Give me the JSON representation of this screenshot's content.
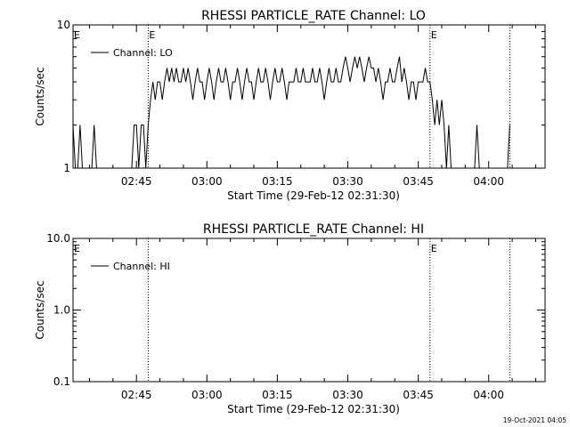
{
  "chart_data": [
    {
      "type": "line",
      "title": "RHESSI PARTICLE_RATE Channel: LO",
      "xlabel": "Start Time (29-Feb-12 02:31:30)",
      "ylabel": "Counts/sec",
      "y_scale": "log",
      "ylim": [
        1,
        10
      ],
      "y_ticks": [
        "1",
        "10"
      ],
      "xlim": [
        "02:31:30",
        "04:12:00"
      ],
      "x_ticks": [
        "02:45",
        "03:00",
        "03:15",
        "03:30",
        "03:45",
        "04:00"
      ],
      "legend": "top-left",
      "grid": false,
      "vlines": [
        {
          "x": "02:47:30",
          "label": "E"
        },
        {
          "x": "03:47:30",
          "label": "E"
        },
        {
          "x": "04:04:30",
          "label": ""
        }
      ],
      "edge_label": "E",
      "series": [
        {
          "name": "Channel: LO",
          "points": [
            [
              "02:31:30",
              2
            ],
            [
              "02:32:00",
              1
            ],
            [
              "02:32:30",
              1
            ],
            [
              "02:33:00",
              2
            ],
            [
              "02:33:30",
              1
            ],
            [
              "02:34:00",
              1
            ],
            [
              "02:34:30",
              1
            ],
            [
              "02:35:00",
              1
            ],
            [
              "02:35:30",
              1
            ],
            [
              "02:36:00",
              2
            ],
            [
              "02:36:30",
              1
            ],
            [
              "02:37:00",
              1
            ],
            [
              "02:38:00",
              1
            ],
            [
              "02:39:00",
              1
            ],
            [
              "02:40:00",
              1
            ],
            [
              "02:41:00",
              1
            ],
            [
              "02:42:00",
              1
            ],
            [
              "02:43:00",
              1
            ],
            [
              "02:44:00",
              1
            ],
            [
              "02:44:30",
              2
            ],
            [
              "02:45:00",
              2
            ],
            [
              "02:45:30",
              1
            ],
            [
              "02:46:00",
              2
            ],
            [
              "02:46:30",
              2
            ],
            [
              "02:47:00",
              1
            ],
            [
              "02:47:30",
              2
            ],
            [
              "02:48:00",
              3
            ],
            [
              "02:48:30",
              4
            ],
            [
              "02:49:00",
              3
            ],
            [
              "02:49:30",
              4
            ],
            [
              "02:50:00",
              4
            ],
            [
              "02:50:30",
              3
            ],
            [
              "02:51:00",
              4
            ],
            [
              "02:51:30",
              5
            ],
            [
              "02:52:00",
              4
            ],
            [
              "02:52:30",
              5
            ],
            [
              "02:53:00",
              4
            ],
            [
              "02:53:30",
              5
            ],
            [
              "02:54:00",
              4
            ],
            [
              "02:54:30",
              4
            ],
            [
              "02:55:00",
              5
            ],
            [
              "02:55:30",
              4
            ],
            [
              "02:56:00",
              5
            ],
            [
              "02:56:30",
              4
            ],
            [
              "02:57:00",
              3
            ],
            [
              "02:57:30",
              4
            ],
            [
              "02:58:00",
              5
            ],
            [
              "02:58:30",
              4
            ],
            [
              "02:59:00",
              4
            ],
            [
              "02:59:30",
              3
            ],
            [
              "03:00:00",
              4
            ],
            [
              "03:00:30",
              5
            ],
            [
              "03:01:00",
              4
            ],
            [
              "03:01:30",
              3
            ],
            [
              "03:02:00",
              4
            ],
            [
              "03:02:30",
              5
            ],
            [
              "03:03:00",
              4
            ],
            [
              "03:03:30",
              4
            ],
            [
              "03:04:00",
              5
            ],
            [
              "03:04:30",
              4
            ],
            [
              "03:05:00",
              3
            ],
            [
              "03:05:30",
              4
            ],
            [
              "03:06:00",
              4
            ],
            [
              "03:06:30",
              5
            ],
            [
              "03:07:00",
              4
            ],
            [
              "03:07:30",
              3
            ],
            [
              "03:08:00",
              4
            ],
            [
              "03:08:30",
              5
            ],
            [
              "03:09:00",
              4
            ],
            [
              "03:09:30",
              4
            ],
            [
              "03:10:00",
              3
            ],
            [
              "03:10:30",
              4
            ],
            [
              "03:11:00",
              5
            ],
            [
              "03:11:30",
              4
            ],
            [
              "03:12:00",
              4
            ],
            [
              "03:12:30",
              5
            ],
            [
              "03:13:00",
              4
            ],
            [
              "03:13:30",
              3
            ],
            [
              "03:14:00",
              4
            ],
            [
              "03:14:30",
              5
            ],
            [
              "03:15:00",
              4
            ],
            [
              "03:15:30",
              4
            ],
            [
              "03:16:00",
              5
            ],
            [
              "03:16:30",
              4
            ],
            [
              "03:17:00",
              3
            ],
            [
              "03:17:30",
              4
            ],
            [
              "03:18:00",
              4
            ],
            [
              "03:18:30",
              4
            ],
            [
              "03:19:00",
              5
            ],
            [
              "03:19:30",
              4
            ],
            [
              "03:20:00",
              4
            ],
            [
              "03:20:30",
              5
            ],
            [
              "03:21:00",
              4
            ],
            [
              "03:21:30",
              4
            ],
            [
              "03:22:00",
              4
            ],
            [
              "03:22:30",
              5
            ],
            [
              "03:23:00",
              4
            ],
            [
              "03:23:30",
              4
            ],
            [
              "03:24:00",
              5
            ],
            [
              "03:24:30",
              4
            ],
            [
              "03:25:00",
              3
            ],
            [
              "03:25:30",
              4
            ],
            [
              "03:26:00",
              5
            ],
            [
              "03:26:30",
              4
            ],
            [
              "03:27:00",
              4
            ],
            [
              "03:27:30",
              5
            ],
            [
              "03:28:00",
              4
            ],
            [
              "03:28:30",
              4
            ],
            [
              "03:29:00",
              5
            ],
            [
              "03:29:30",
              6
            ],
            [
              "03:30:00",
              5
            ],
            [
              "03:30:30",
              4
            ],
            [
              "03:31:00",
              5
            ],
            [
              "03:31:30",
              6
            ],
            [
              "03:32:00",
              5
            ],
            [
              "03:32:30",
              6
            ],
            [
              "03:33:00",
              5
            ],
            [
              "03:33:30",
              4
            ],
            [
              "03:34:00",
              5
            ],
            [
              "03:34:30",
              6
            ],
            [
              "03:35:00",
              5
            ],
            [
              "03:35:30",
              5
            ],
            [
              "03:36:00",
              4
            ],
            [
              "03:36:30",
              5
            ],
            [
              "03:37:00",
              4
            ],
            [
              "03:37:30",
              3
            ],
            [
              "03:38:00",
              4
            ],
            [
              "03:38:30",
              4
            ],
            [
              "03:39:00",
              5
            ],
            [
              "03:39:30",
              4
            ],
            [
              "03:40:00",
              4
            ],
            [
              "03:40:30",
              5
            ],
            [
              "03:41:00",
              6
            ],
            [
              "03:41:30",
              4
            ],
            [
              "03:42:00",
              5
            ],
            [
              "03:42:30",
              4
            ],
            [
              "03:43:00",
              3
            ],
            [
              "03:43:30",
              4
            ],
            [
              "03:44:00",
              4
            ],
            [
              "03:44:30",
              3
            ],
            [
              "03:45:00",
              4
            ],
            [
              "03:45:30",
              4
            ],
            [
              "03:46:00",
              4
            ],
            [
              "03:46:30",
              5
            ],
            [
              "03:47:00",
              4
            ],
            [
              "03:47:30",
              4
            ],
            [
              "03:48:00",
              3
            ],
            [
              "03:48:30",
              2
            ],
            [
              "03:49:00",
              3
            ],
            [
              "03:49:30",
              2
            ],
            [
              "03:50:00",
              3
            ],
            [
              "03:50:30",
              2
            ],
            [
              "03:51:00",
              1
            ],
            [
              "03:51:30",
              2
            ],
            [
              "03:52:00",
              1
            ],
            [
              "03:53:00",
              1
            ],
            [
              "03:54:00",
              1
            ],
            [
              "03:55:00",
              1
            ],
            [
              "03:55:30",
              1
            ],
            [
              "03:56:00",
              1
            ],
            [
              "03:57:00",
              1
            ],
            [
              "03:57:30",
              2
            ],
            [
              "03:58:00",
              1
            ],
            [
              "03:59:00",
              1
            ],
            [
              "04:00:00",
              1
            ],
            [
              "04:01:00",
              1
            ],
            [
              "04:02:00",
              1
            ],
            [
              "04:03:00",
              1
            ],
            [
              "04:04:00",
              1
            ],
            [
              "04:04:30",
              2
            ]
          ]
        }
      ]
    },
    {
      "type": "line",
      "title": "RHESSI PARTICLE_RATE Channel: HI",
      "xlabel": "Start Time (29-Feb-12 02:31:30)",
      "ylabel": "Counts/sec",
      "y_scale": "log",
      "ylim": [
        0.1,
        10
      ],
      "y_ticks": [
        "0.1",
        "1.0",
        "10.0"
      ],
      "xlim": [
        "02:31:30",
        "04:12:00"
      ],
      "x_ticks": [
        "02:45",
        "03:00",
        "03:15",
        "03:30",
        "03:45",
        "04:00"
      ],
      "legend": "top-left",
      "grid": false,
      "vlines": [
        {
          "x": "02:47:30",
          "label": ""
        },
        {
          "x": "03:47:30",
          "label": "E"
        },
        {
          "x": "04:04:30",
          "label": ""
        }
      ],
      "edge_label": "E",
      "series": [
        {
          "name": "Channel: HI",
          "points": []
        }
      ]
    }
  ],
  "footer": {
    "timestamp": "19-Oct-2021 04:05"
  }
}
